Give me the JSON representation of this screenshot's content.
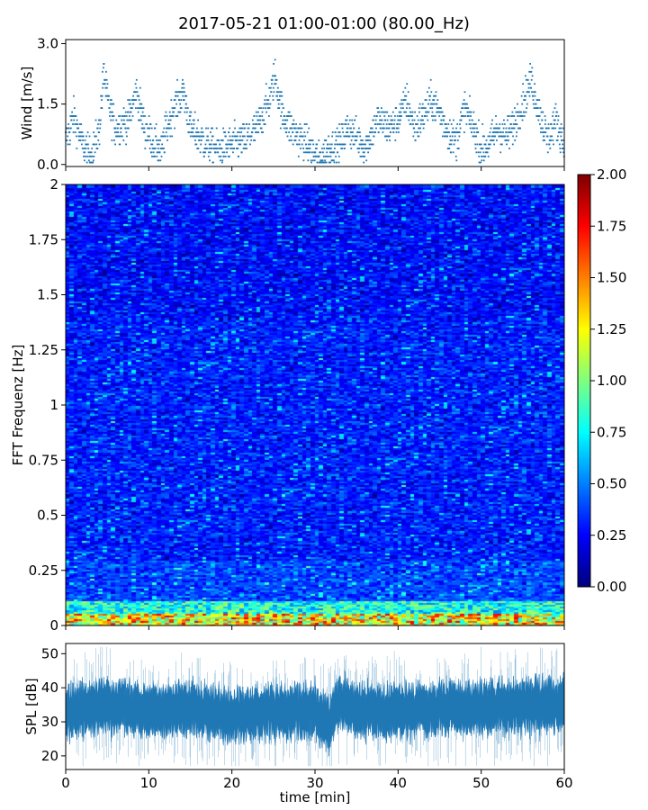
{
  "title": "2017-05-21 01:00-01:00 (80.00_Hz)",
  "chart_data": [
    {
      "type": "scatter",
      "ylabel": "Wind [m/s]",
      "xlim": [
        0,
        60
      ],
      "ylim": [
        -0.05,
        3.1
      ],
      "yticks": [
        "0.0",
        "1.5",
        "3.0"
      ],
      "ytick_values": [
        0,
        1.5,
        3.0
      ],
      "color": "#1f77b4",
      "trend_x": [
        0,
        1,
        2,
        3,
        4,
        4.6,
        5,
        6,
        7.5,
        8.5,
        9.5,
        10.5,
        11.5,
        12,
        13,
        14.2,
        15,
        16,
        17,
        18.5,
        20,
        21.5,
        23,
        24.5,
        25.2,
        26,
        27,
        28,
        29.5,
        30.5,
        31.5,
        33,
        34,
        35,
        36,
        37.5,
        39,
        40,
        41,
        42,
        43,
        44,
        45,
        46,
        47,
        48,
        49.5,
        50,
        51,
        52,
        53,
        54,
        55.5,
        56,
        57,
        58,
        59,
        60
      ],
      "trend_y": [
        0.6,
        1.2,
        0.5,
        0.2,
        0.8,
        2.3,
        1.6,
        0.9,
        1.1,
        1.8,
        0.9,
        0.6,
        0.3,
        0.8,
        1.4,
        1.8,
        0.9,
        0.7,
        0.5,
        0.4,
        0.5,
        0.6,
        0.9,
        1.6,
        2.2,
        1.3,
        0.9,
        0.7,
        0.4,
        0.1,
        0.4,
        0.5,
        0.9,
        0.7,
        0.4,
        1.1,
        0.9,
        1.1,
        1.6,
        0.9,
        1.2,
        1.6,
        1.3,
        0.8,
        0.6,
        1.4,
        0.7,
        0.4,
        0.5,
        0.9,
        0.7,
        1.0,
        1.8,
        2.1,
        1.3,
        0.6,
        1.1,
        0.5
      ]
    },
    {
      "type": "heatmap",
      "ylabel": "FFT Frequenz [Hz]",
      "xlim": [
        0,
        60
      ],
      "ylim": [
        0,
        2
      ],
      "yticks": [
        "0",
        "0.25",
        "0.5",
        "0.75",
        "1",
        "1.25",
        "1.5",
        "1.75",
        "2"
      ],
      "ytick_values": [
        0,
        0.25,
        0.5,
        0.75,
        1,
        1.25,
        1.5,
        1.75,
        2
      ],
      "colormap": "jet",
      "color_range": [
        0,
        2
      ],
      "colorbar_ticks": [
        "0.00",
        "0.25",
        "0.50",
        "0.75",
        "1.00",
        "1.25",
        "1.50",
        "1.75",
        "2.00"
      ],
      "colorbar_tick_values": [
        0,
        0.25,
        0.5,
        0.75,
        1,
        1.25,
        1.5,
        1.75,
        2
      ],
      "typical_value": 0.3,
      "low_frequency_value": 1.5
    },
    {
      "type": "line",
      "ylabel": "SPL [dB]",
      "xlabel": "time [min]",
      "xlim": [
        0,
        60
      ],
      "ylim": [
        16,
        53
      ],
      "yticks": [
        "20",
        "30",
        "40",
        "50"
      ],
      "ytick_values": [
        20,
        30,
        40,
        50
      ],
      "xticks": [
        "0",
        "10",
        "20",
        "30",
        "40",
        "50",
        "60"
      ],
      "xtick_values": [
        0,
        10,
        20,
        30,
        40,
        50,
        60
      ],
      "color": "#1f77b4",
      "mean_x": [
        0,
        5,
        10,
        15,
        20,
        25,
        30,
        31.5,
        33,
        35,
        40,
        45,
        50,
        55,
        60
      ],
      "mean_y": [
        33,
        35,
        33,
        34,
        32,
        33,
        33,
        29,
        36,
        33,
        33,
        34,
        34,
        35,
        35
      ],
      "band_min": 20,
      "band_max": 50
    }
  ]
}
